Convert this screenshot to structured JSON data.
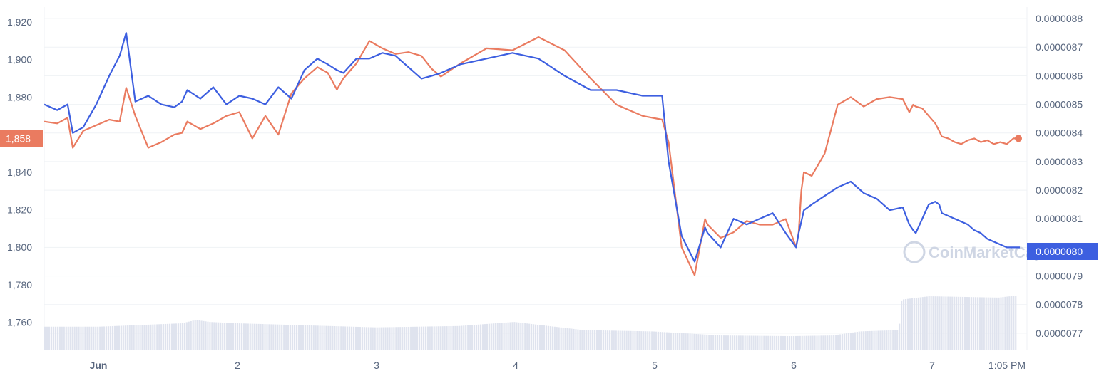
{
  "chart_data": {
    "type": "line",
    "x_labels": [
      "Jun",
      "2",
      "3",
      "4",
      "5",
      "6",
      "7",
      "1:05 PM"
    ],
    "y_left": {
      "ticks": [
        1920,
        1900,
        1880,
        1860,
        1840,
        1820,
        1800,
        1780,
        1760
      ],
      "tick_labels": [
        "1,920",
        "1,900",
        "1,880",
        "1,860",
        "1,840",
        "1,820",
        "1,800",
        "1,780",
        "1,760"
      ],
      "range": [
        1745,
        1928
      ]
    },
    "y_right": {
      "ticks": [
        8.8e-06,
        8.7e-06,
        8.6e-06,
        8.5e-06,
        8.4e-06,
        8.3e-06,
        8.2e-06,
        8.1e-06,
        8e-06,
        7.9e-06,
        7.8e-06,
        7.7e-06
      ],
      "tick_labels": [
        "0.0000088",
        "0.0000087",
        "0.0000086",
        "0.0000085",
        "0.0000084",
        "0.0000083",
        "0.0000082",
        "0.0000081",
        "0.0000080",
        "0.0000079",
        "0.0000078",
        "0.0000077"
      ],
      "range": [
        7.64e-06,
        8.84e-06
      ]
    },
    "current_left_label": "1,858",
    "current_right_label": "0.0000080",
    "series": [
      {
        "axis": "left",
        "color": "#ea7b60",
        "x": [
          0,
          0.1,
          0.18,
          0.22,
          0.3,
          0.4,
          0.5,
          0.58,
          0.63,
          0.7,
          0.8,
          0.9,
          1.0,
          1.06,
          1.1,
          1.2,
          1.3,
          1.4,
          1.5,
          1.6,
          1.7,
          1.8,
          1.9,
          2.0,
          2.1,
          2.18,
          2.25,
          2.3,
          2.4,
          2.5,
          2.6,
          2.7,
          2.8,
          2.9,
          2.98,
          3.05,
          3.2,
          3.4,
          3.6,
          3.8,
          4.0,
          4.2,
          4.4,
          4.6,
          4.75,
          4.8,
          4.9,
          5.0,
          5.08,
          5.1,
          5.2,
          5.3,
          5.4,
          5.5,
          5.6,
          5.7,
          5.78,
          5.8,
          5.82,
          5.84,
          5.9,
          6.0,
          6.1,
          6.2,
          6.3,
          6.4,
          6.5,
          6.6,
          6.65,
          6.68,
          6.7,
          6.75,
          6.8,
          6.85,
          6.88,
          6.9,
          6.95,
          7.0,
          7.05,
          7.1,
          7.15,
          7.2,
          7.25,
          7.3,
          7.35,
          7.4,
          7.45,
          7.5
        ],
        "values": [
          1867,
          1866,
          1869,
          1853,
          1862,
          1865,
          1868,
          1867,
          1885,
          1870,
          1853,
          1856,
          1860,
          1861,
          1867,
          1863,
          1866,
          1870,
          1872,
          1858,
          1870,
          1860,
          1882,
          1890,
          1896,
          1893,
          1884,
          1890,
          1898,
          1910,
          1906,
          1903,
          1904,
          1902,
          1895,
          1891,
          1898,
          1906,
          1905,
          1912,
          1905,
          1890,
          1876,
          1870,
          1868,
          1856,
          1800,
          1785,
          1815,
          1812,
          1805,
          1808,
          1814,
          1812,
          1812,
          1815,
          1800,
          1808,
          1830,
          1840,
          1838,
          1850,
          1876,
          1880,
          1875,
          1879,
          1880,
          1879,
          1872,
          1876,
          1875,
          1874,
          1870,
          1866,
          1862,
          1859,
          1858,
          1856,
          1855,
          1857,
          1858,
          1856,
          1857,
          1855,
          1856,
          1855,
          1858,
          1858
        ]
      },
      {
        "axis": "right",
        "color": "#3d5fe0",
        "x": [
          0,
          0.1,
          0.18,
          0.22,
          0.3,
          0.4,
          0.5,
          0.58,
          0.63,
          0.7,
          0.8,
          0.9,
          1.0,
          1.06,
          1.1,
          1.2,
          1.3,
          1.4,
          1.5,
          1.6,
          1.7,
          1.8,
          1.9,
          2.0,
          2.1,
          2.18,
          2.25,
          2.3,
          2.4,
          2.5,
          2.6,
          2.7,
          2.8,
          2.9,
          2.98,
          3.05,
          3.2,
          3.4,
          3.6,
          3.8,
          4.0,
          4.2,
          4.4,
          4.6,
          4.75,
          4.8,
          4.9,
          5.0,
          5.08,
          5.1,
          5.2,
          5.3,
          5.4,
          5.5,
          5.6,
          5.7,
          5.78,
          5.8,
          5.82,
          5.84,
          5.9,
          6.0,
          6.1,
          6.2,
          6.3,
          6.4,
          6.5,
          6.6,
          6.65,
          6.68,
          6.7,
          6.75,
          6.8,
          6.85,
          6.88,
          6.9,
          6.95,
          7.0,
          7.05,
          7.1,
          7.15,
          7.2,
          7.25,
          7.3,
          7.35,
          7.4,
          7.45,
          7.5
        ],
        "values": [
          8.5e-06,
          8.48e-06,
          8.5e-06,
          8.4e-06,
          8.42e-06,
          8.5e-06,
          8.6e-06,
          8.67e-06,
          8.75e-06,
          8.51e-06,
          8.53e-06,
          8.5e-06,
          8.49e-06,
          8.51e-06,
          8.55e-06,
          8.52e-06,
          8.56e-06,
          8.5e-06,
          8.53e-06,
          8.52e-06,
          8.5e-06,
          8.56e-06,
          8.52e-06,
          8.62e-06,
          8.66e-06,
          8.64e-06,
          8.62e-06,
          8.61e-06,
          8.66e-06,
          8.66e-06,
          8.68e-06,
          8.67e-06,
          8.63e-06,
          8.59e-06,
          8.6e-06,
          8.61e-06,
          8.64e-06,
          8.66e-06,
          8.68e-06,
          8.66e-06,
          8.6e-06,
          8.55e-06,
          8.55e-06,
          8.53e-06,
          8.53e-06,
          8.3e-06,
          8.04e-06,
          7.95e-06,
          8.07e-06,
          8.05e-06,
          8e-06,
          8.1e-06,
          8.08e-06,
          8.1e-06,
          8.12e-06,
          8.05e-06,
          8e-06,
          8.05e-06,
          8.09e-06,
          8.13e-06,
          8.15e-06,
          8.18e-06,
          8.21e-06,
          8.23e-06,
          8.19e-06,
          8.17e-06,
          8.13e-06,
          8.14e-06,
          8.08e-06,
          8.06e-06,
          8.05e-06,
          8.1e-06,
          8.15e-06,
          8.16e-06,
          8.15e-06,
          8.12e-06,
          8.11e-06,
          8.1e-06,
          8.09e-06,
          8.08e-06,
          8.06e-06,
          8.05e-06,
          8.03e-06,
          8.02e-06,
          8.01e-06,
          8e-06,
          8e-06,
          8e-06
        ]
      }
    ],
    "volume": {
      "x": [
        0,
        0.6,
        0.7,
        0.8,
        1.0,
        1.5,
        2.0,
        2.6,
        3.0,
        3.5,
        4.0,
        4.5,
        5.0,
        5.3,
        5.5,
        5.78,
        5.8,
        6.0,
        6.5,
        6.8,
        6.85,
        7.0,
        7.5
      ],
      "values": [
        0.35,
        0.4,
        0.45,
        0.42,
        0.4,
        0.37,
        0.34,
        0.36,
        0.42,
        0.3,
        0.28,
        0.22,
        0.21,
        0.22,
        0.28,
        0.3,
        0.75,
        0.8,
        0.78,
        0.85,
        0.6,
        0.55,
        0.6
      ]
    },
    "watermark": "CoinMarketCap",
    "grid": true
  }
}
